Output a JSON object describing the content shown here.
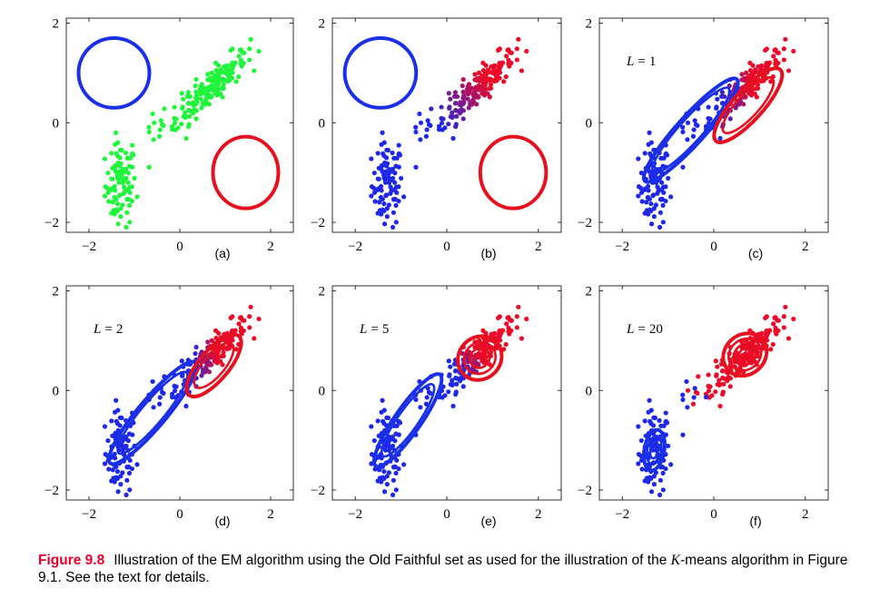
{
  "chart_data": [
    {
      "type": "scatter",
      "panel_label": "(a)",
      "iteration_label": "",
      "xlim": [
        -2.5,
        2.5
      ],
      "ylim": [
        -2.2,
        2.1
      ],
      "xticks": [
        "−2",
        "0",
        "2"
      ],
      "yticks": [
        "2",
        "0",
        "−2"
      ],
      "point_coloring": "green",
      "components": [
        {
          "color": "#1a30e6",
          "center": [
            -1.45,
            1.0
          ],
          "rx": 0.78,
          "ry": 0.7,
          "angle_deg": 0,
          "rings": [
            1.0
          ]
        },
        {
          "color": "#e6101e",
          "center": [
            1.45,
            -1.0
          ],
          "rx": 0.72,
          "ry": 0.72,
          "angle_deg": 0,
          "rings": [
            1.0
          ]
        }
      ]
    },
    {
      "type": "scatter",
      "panel_label": "(b)",
      "iteration_label": "",
      "xlim": [
        -2.5,
        2.5
      ],
      "ylim": [
        -2.2,
        2.1
      ],
      "xticks": [
        "−2",
        "0",
        "2"
      ],
      "yticks": [
        "2",
        "0",
        "−2"
      ],
      "point_coloring": "responsibility-b",
      "components": [
        {
          "color": "#1a30e6",
          "center": [
            -1.45,
            1.0
          ],
          "rx": 0.78,
          "ry": 0.7,
          "angle_deg": 0,
          "rings": [
            1.0
          ]
        },
        {
          "color": "#e6101e",
          "center": [
            1.45,
            -1.0
          ],
          "rx": 0.72,
          "ry": 0.72,
          "angle_deg": 0,
          "rings": [
            1.0
          ]
        }
      ]
    },
    {
      "type": "scatter",
      "panel_label": "(c)",
      "iteration_label_var": "L",
      "iteration_label_value": "1",
      "xlim": [
        -2.5,
        2.5
      ],
      "ylim": [
        -2.2,
        2.1
      ],
      "xticks": [
        "−2",
        "0",
        "2"
      ],
      "yticks": [
        "2",
        "0",
        "−2"
      ],
      "point_coloring": "responsibility-c",
      "components": [
        {
          "color": "#1a30e6",
          "center": [
            -0.5,
            -0.15
          ],
          "rx": 1.5,
          "ry": 0.28,
          "angle_deg": 48,
          "rings": [
            1.0,
            0.82
          ]
        },
        {
          "color": "#e6101e",
          "center": [
            0.75,
            0.35
          ],
          "rx": 1.05,
          "ry": 0.3,
          "angle_deg": 48,
          "rings": [
            1.0,
            0.75
          ]
        }
      ]
    },
    {
      "type": "scatter",
      "panel_label": "(d)",
      "iteration_label_var": "L",
      "iteration_label_value": "2",
      "xlim": [
        -2.5,
        2.5
      ],
      "ylim": [
        -2.2,
        2.1
      ],
      "xticks": [
        "−2",
        "0",
        "2"
      ],
      "yticks": [
        "2",
        "0",
        "−2"
      ],
      "point_coloring": "responsibility-d",
      "components": [
        {
          "color": "#1a30e6",
          "center": [
            -0.6,
            -0.45
          ],
          "rx": 1.45,
          "ry": 0.28,
          "angle_deg": 50,
          "rings": [
            1.0,
            0.8
          ]
        },
        {
          "color": "#e6101e",
          "center": [
            0.75,
            0.5
          ],
          "rx": 0.85,
          "ry": 0.3,
          "angle_deg": 50,
          "rings": [
            1.0,
            0.72
          ]
        }
      ]
    },
    {
      "type": "scatter",
      "panel_label": "(e)",
      "iteration_label_var": "L",
      "iteration_label_value": "5",
      "xlim": [
        -2.5,
        2.5
      ],
      "ylim": [
        -2.2,
        2.1
      ],
      "xticks": [
        "−2",
        "0",
        "2"
      ],
      "yticks": [
        "2",
        "0",
        "−2"
      ],
      "point_coloring": "responsibility-e",
      "components": [
        {
          "color": "#1a30e6",
          "center": [
            -0.85,
            -0.6
          ],
          "rx": 1.22,
          "ry": 0.26,
          "angle_deg": 55,
          "rings": [
            1.0,
            0.78
          ]
        },
        {
          "color": "#e6101e",
          "center": [
            0.72,
            0.65
          ],
          "rx": 0.5,
          "ry": 0.42,
          "angle_deg": 45,
          "rings": [
            1.0,
            0.72,
            0.45
          ]
        }
      ]
    },
    {
      "type": "scatter",
      "panel_label": "(f)",
      "iteration_label_var": "L",
      "iteration_label_value": "20",
      "xlim": [
        -2.5,
        2.5
      ],
      "ylim": [
        -2.2,
        2.1
      ],
      "xticks": [
        "−2",
        "0",
        "2"
      ],
      "yticks": [
        "2",
        "0",
        "−2"
      ],
      "point_coloring": "final",
      "components": [
        {
          "color": "#1a30e6",
          "center": [
            -1.3,
            -1.2
          ],
          "rx": 0.45,
          "ry": 0.2,
          "angle_deg": 80,
          "rings": [
            1.0,
            0.7,
            0.4
          ]
        },
        {
          "color": "#e6101e",
          "center": [
            0.68,
            0.72
          ],
          "rx": 0.5,
          "ry": 0.4,
          "angle_deg": 40,
          "rings": [
            1.0,
            0.75,
            0.5,
            0.28
          ]
        }
      ]
    }
  ],
  "caption": {
    "figure_number": "Figure 9.8",
    "text_before": "Illustration of the EM algorithm using the Old Faithful set as used for the illustration of the ",
    "variable": "K",
    "text_after": "-means algorithm in Figure 9.1. See the text for details."
  }
}
